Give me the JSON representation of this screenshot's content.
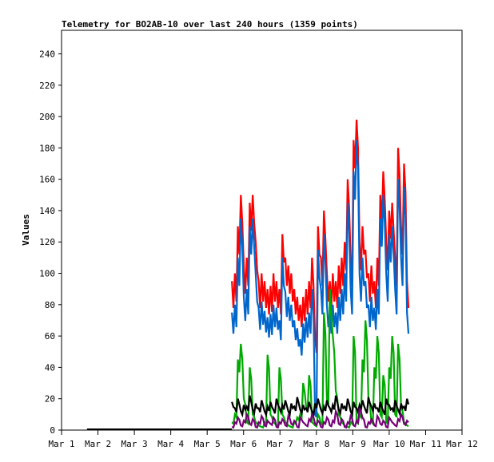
{
  "chart_data": {
    "type": "line",
    "title": "Telemetry for BO2AB-10 over last 240 hours (1359 points)",
    "xlabel": "",
    "ylabel": "Values",
    "xlim": [
      0,
      11
    ],
    "ylim": [
      0,
      255
    ],
    "x_unit": "days since Mar 1",
    "x_ticks": [
      {
        "value": 0,
        "label": "Mar 1"
      },
      {
        "value": 1,
        "label": "Mar 2"
      },
      {
        "value": 2,
        "label": "Mar 3"
      },
      {
        "value": 3,
        "label": "Mar 4"
      },
      {
        "value": 4,
        "label": "Mar 5"
      },
      {
        "value": 5,
        "label": "Mar 6"
      },
      {
        "value": 6,
        "label": "Mar 7"
      },
      {
        "value": 7,
        "label": "Mar 8"
      },
      {
        "value": 8,
        "label": "Mar 9"
      },
      {
        "value": 9,
        "label": "Mar 10"
      },
      {
        "value": 10,
        "label": "Mar 11"
      },
      {
        "value": 11,
        "label": "Mar 12"
      }
    ],
    "y_ticks": [
      "0",
      "20",
      "40",
      "60",
      "80",
      "100",
      "120",
      "140",
      "160",
      "180",
      "200",
      "220",
      "240"
    ],
    "grid": false,
    "x_start": 4.68,
    "x_step": 0.0815,
    "flat_segment": {
      "x": [
        0.7,
        4.68
      ],
      "y": 0,
      "color": "#000000"
    },
    "series": [
      {
        "name": "red",
        "color": "#ff0000",
        "values": [
          95,
          100,
          130,
          150,
          105,
          110,
          145,
          150,
          120,
          95,
          100,
          95,
          90,
          92,
          100,
          95,
          90,
          125,
          110,
          105,
          100,
          90,
          85,
          80,
          85,
          90,
          95,
          110,
          60,
          130,
          110,
          140,
          100,
          95,
          100,
          95,
          105,
          110,
          120,
          160,
          110,
          185,
          198,
          120,
          130,
          115,
          100,
          105,
          95,
          110,
          150,
          165,
          120,
          140,
          145,
          110,
          180,
          130,
          170,
          95
        ]
      },
      {
        "name": "blue",
        "color": "#0066cc",
        "values": [
          75,
          80,
          110,
          135,
          85,
          90,
          130,
          135,
          100,
          78,
          82,
          76,
          72,
          74,
          80,
          78,
          70,
          110,
          88,
          85,
          80,
          70,
          65,
          58,
          68,
          72,
          75,
          90,
          10,
          115,
          90,
          125,
          80,
          75,
          80,
          75,
          85,
          90,
          100,
          145,
          90,
          165,
          185,
          100,
          110,
          95,
          80,
          85,
          78,
          90,
          135,
          150,
          100,
          125,
          130,
          90,
          160,
          110,
          155,
          75
        ]
      },
      {
        "name": "green",
        "color": "#00aa00",
        "values": [
          5,
          10,
          45,
          55,
          20,
          5,
          40,
          10,
          5,
          3,
          2,
          5,
          48,
          10,
          5,
          3,
          40,
          10,
          5,
          3,
          2,
          5,
          8,
          10,
          30,
          15,
          35,
          5,
          3,
          10,
          4,
          75,
          20,
          90,
          60,
          25,
          10,
          5,
          3,
          2,
          5,
          60,
          5,
          10,
          45,
          70,
          20,
          5,
          40,
          60,
          10,
          35,
          5,
          40,
          60,
          10,
          55,
          15,
          5,
          3
        ]
      },
      {
        "name": "black",
        "color": "#000000",
        "values": [
          18,
          14,
          20,
          12,
          16,
          15,
          22,
          13,
          17,
          14,
          19,
          12,
          15,
          18,
          13,
          20,
          14,
          16,
          19,
          12,
          17,
          15,
          21,
          13,
          16,
          14,
          18,
          12,
          17,
          20,
          13,
          15,
          19,
          14,
          16,
          22,
          13,
          17,
          15,
          20,
          12,
          18,
          14,
          16,
          19,
          13,
          21,
          15,
          17,
          14,
          18,
          12,
          20,
          16,
          14,
          19,
          13,
          17,
          15,
          20
        ]
      },
      {
        "name": "purple",
        "color": "#770077",
        "values": [
          2,
          5,
          8,
          3,
          6,
          10,
          4,
          7,
          2,
          5,
          9,
          3,
          6,
          4,
          8,
          2,
          5,
          7,
          3,
          9,
          4,
          6,
          2,
          8,
          5,
          3,
          7,
          10,
          4,
          6,
          2,
          5,
          8,
          3,
          6,
          12,
          4,
          7,
          2,
          5,
          9,
          3,
          6,
          14,
          8,
          2,
          5,
          7,
          3,
          9,
          4,
          6,
          2,
          8,
          5,
          3,
          7,
          10,
          4,
          6
        ]
      }
    ]
  }
}
